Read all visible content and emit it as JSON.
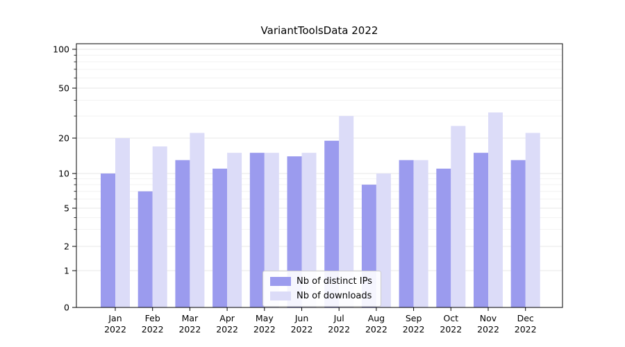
{
  "chart_data": {
    "type": "bar",
    "title": "VariantToolsData 2022",
    "categories": [
      "Jan",
      "Feb",
      "Mar",
      "Apr",
      "May",
      "Jun",
      "Jul",
      "Aug",
      "Sep",
      "Oct",
      "Nov",
      "Dec"
    ],
    "year_label": "2022",
    "series": [
      {
        "name": "Nb of distinct IPs",
        "color": "#9b9bee",
        "values": [
          10,
          7,
          13,
          11,
          15,
          14,
          19,
          8,
          13,
          11,
          15,
          13
        ]
      },
      {
        "name": "Nb of downloads",
        "color": "#dcdcf8",
        "values": [
          20,
          17,
          22,
          15,
          15,
          15,
          30,
          10,
          13,
          25,
          32,
          22
        ]
      }
    ],
    "yticks": [
      0,
      1,
      2,
      5,
      10,
      20,
      50,
      100
    ],
    "yscale": "symlog",
    "ylim": [
      0,
      100
    ],
    "grid": true,
    "legend_position": "lower center"
  }
}
